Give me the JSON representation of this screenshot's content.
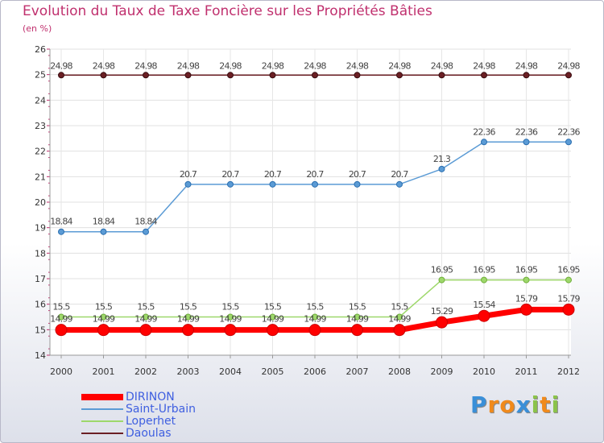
{
  "chart_data": {
    "type": "line",
    "title": "Evolution du Taux de Taxe Foncière sur les Propriétés Bâties",
    "subtitle": "(en %)",
    "ylim": [
      14,
      26
    ],
    "yticks": [
      "14",
      "15",
      "16",
      "17",
      "18",
      "19",
      "20",
      "21",
      "22",
      "23",
      "24",
      "25",
      "26"
    ],
    "categories": [
      "2000",
      "2001",
      "2002",
      "2003",
      "2004",
      "2005",
      "2006",
      "2007",
      "2008",
      "2009",
      "2010",
      "2011",
      "2012"
    ],
    "series": [
      {
        "name": "Daoulas",
        "color": "#6b1f24",
        "values": [
          24.98,
          24.98,
          24.98,
          24.98,
          24.98,
          24.98,
          24.98,
          24.98,
          24.98,
          24.98,
          24.98,
          24.98,
          24.98
        ],
        "labels": [
          "24.98",
          "24.98",
          "24.98",
          "24.98",
          "24.98",
          "24.98",
          "24.98",
          "24.98",
          "24.98",
          "24.98",
          "24.98",
          "24.98",
          "24.98"
        ]
      },
      {
        "name": "Saint-Urbain",
        "color": "#5b9bd5",
        "values": [
          18.84,
          18.84,
          18.84,
          20.7,
          20.7,
          20.7,
          20.7,
          20.7,
          20.7,
          21.3,
          22.36,
          22.36,
          22.36
        ],
        "labels": [
          "18.84",
          "18.84",
          "18.84",
          "20.7",
          "20.7",
          "20.7",
          "20.7",
          "20.7",
          "20.7",
          "21.3",
          "22.36",
          "22.36",
          "22.36"
        ]
      },
      {
        "name": "Loperhet",
        "color": "#9ed86b",
        "values": [
          15.5,
          15.5,
          15.5,
          15.5,
          15.5,
          15.5,
          15.5,
          15.5,
          15.5,
          16.95,
          16.95,
          16.95,
          16.95
        ],
        "labels": [
          "15.5",
          "15.5",
          "15.5",
          "15.5",
          "15.5",
          "15.5",
          "15.5",
          "15.5",
          "15.5",
          "16.95",
          "16.95",
          "16.95",
          "16.95"
        ]
      },
      {
        "name": "DIRINON",
        "color": "#ff0000",
        "values": [
          14.99,
          14.99,
          14.99,
          14.99,
          14.99,
          14.99,
          14.99,
          14.99,
          14.99,
          15.29,
          15.54,
          15.79,
          15.79
        ],
        "labels": [
          "14.99",
          "14.99",
          "14.99",
          "14.99",
          "14.99",
          "14.99",
          "14.99",
          "14.99",
          "14.99",
          "15.29",
          "15.54",
          "15.79",
          "15.79"
        ]
      }
    ],
    "legend": [
      "DIRINON",
      "Saint-Urbain",
      "Loperhet",
      "Daoulas"
    ]
  },
  "brand": {
    "letters": [
      "P",
      "r",
      "o",
      "x",
      "i",
      "t",
      "i"
    ],
    "colors": [
      "#3a8fd8",
      "#f08a1c",
      "#f08a1c",
      "#3a8fd8",
      "#8bc34a",
      "#f08a1c",
      "#8bc34a"
    ]
  }
}
